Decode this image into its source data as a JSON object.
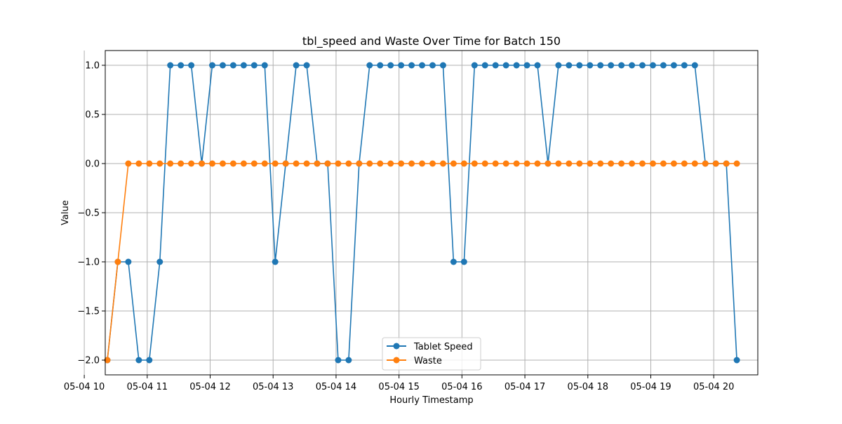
{
  "chart_data": {
    "type": "line",
    "title": "tbl_speed and Waste Over Time for Batch 150",
    "xlabel": "Hourly Timestamp",
    "ylabel": "Value",
    "ylim": [
      -2.15,
      1.15
    ],
    "x_range_minutes": [
      620,
      1242
    ],
    "x_ticks": [
      {
        "label": "05-04 10",
        "minute": 600
      },
      {
        "label": "05-04 11",
        "minute": 660
      },
      {
        "label": "05-04 12",
        "minute": 720
      },
      {
        "label": "05-04 13",
        "minute": 780
      },
      {
        "label": "05-04 14",
        "minute": 840
      },
      {
        "label": "05-04 15",
        "minute": 900
      },
      {
        "label": "05-04 16",
        "minute": 960
      },
      {
        "label": "05-04 17",
        "minute": 1020
      },
      {
        "label": "05-04 18",
        "minute": 1080
      },
      {
        "label": "05-04 19",
        "minute": 1140
      },
      {
        "label": "05-04 20",
        "minute": 1200
      }
    ],
    "y_ticks": [
      {
        "label": "1.0",
        "value": 1.0
      },
      {
        "label": "0.5",
        "value": 0.5
      },
      {
        "label": "0.0",
        "value": 0.0
      },
      {
        "label": "−0.5",
        "value": -0.5
      },
      {
        "label": "−1.0",
        "value": -1.0
      },
      {
        "label": "−1.5",
        "value": -1.5
      },
      {
        "label": "−2.0",
        "value": -2.0
      }
    ],
    "grid": true,
    "legend_position": "bottom-center",
    "series": [
      {
        "name": "Tablet Speed",
        "color": "#1f77b4",
        "values": [
          -2,
          -1,
          -1,
          -2,
          -2,
          -1,
          1,
          1,
          1,
          0,
          1,
          1,
          1,
          1,
          1,
          1,
          -1,
          0,
          1,
          1,
          0,
          0,
          -2,
          -2,
          0,
          1,
          1,
          1,
          1,
          1,
          1,
          1,
          1,
          -1,
          -1,
          1,
          1,
          1,
          1,
          1,
          1,
          1,
          0,
          1,
          1,
          1,
          1,
          1,
          1,
          1,
          1,
          1,
          1,
          1,
          1,
          1,
          1,
          0,
          0,
          0,
          -2
        ]
      },
      {
        "name": "Waste",
        "color": "#ff7f0e",
        "values": [
          -2,
          -1,
          0,
          0,
          0,
          0,
          0,
          0,
          0,
          0,
          0,
          0,
          0,
          0,
          0,
          0,
          0,
          0,
          0,
          0,
          0,
          0,
          0,
          0,
          0,
          0,
          0,
          0,
          0,
          0,
          0,
          0,
          0,
          0,
          0,
          0,
          0,
          0,
          0,
          0,
          0,
          0,
          0,
          0,
          0,
          0,
          0,
          0,
          0,
          0,
          0,
          0,
          0,
          0,
          0,
          0,
          0,
          0,
          0,
          0,
          0
        ]
      }
    ]
  }
}
